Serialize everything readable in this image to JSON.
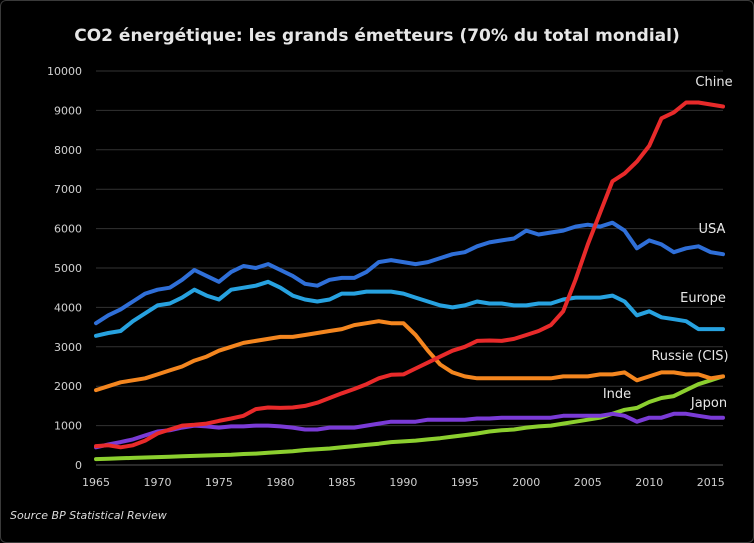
{
  "chart_data": {
    "type": "line",
    "title": "CO2 énergétique: les grands émetteurs  (70% du total mondial)",
    "source": "Source BP Statistical Review",
    "xlabel": "",
    "ylabel": "",
    "xlim": [
      1965,
      2016
    ],
    "ylim": [
      0,
      10000
    ],
    "yticks": [
      0,
      1000,
      2000,
      3000,
      4000,
      5000,
      6000,
      7000,
      8000,
      9000,
      10000
    ],
    "xticks": [
      1965,
      1970,
      1975,
      1980,
      1985,
      1990,
      1995,
      2000,
      2005,
      2010,
      2015
    ],
    "grid": true,
    "legend": "labels-on-lines",
    "x": [
      1965,
      1966,
      1967,
      1968,
      1969,
      1970,
      1971,
      1972,
      1973,
      1974,
      1975,
      1976,
      1977,
      1978,
      1979,
      1980,
      1981,
      1982,
      1983,
      1984,
      1985,
      1986,
      1987,
      1988,
      1989,
      1990,
      1991,
      1992,
      1993,
      1994,
      1995,
      1996,
      1997,
      1998,
      1999,
      2000,
      2001,
      2002,
      2003,
      2004,
      2005,
      2006,
      2007,
      2008,
      2009,
      2010,
      2011,
      2012,
      2013,
      2014,
      2015,
      2016
    ],
    "series": [
      {
        "name": "Chine",
        "color": "#e82a2a",
        "values": [
          480,
          500,
          450,
          500,
          620,
          800,
          900,
          1000,
          1020,
          1050,
          1120,
          1180,
          1250,
          1420,
          1460,
          1450,
          1460,
          1500,
          1580,
          1700,
          1820,
          1930,
          2050,
          2200,
          2290,
          2300,
          2450,
          2600,
          2750,
          2900,
          3000,
          3150,
          3160,
          3150,
          3200,
          3300,
          3400,
          3550,
          3900,
          4700,
          5600,
          6400,
          7200,
          7400,
          7700,
          8100,
          8800,
          8950,
          9200,
          9200,
          9150,
          9100
        ]
      },
      {
        "name": "USA",
        "color": "#2f6fd8",
        "values": [
          3600,
          3800,
          3950,
          4150,
          4350,
          4450,
          4500,
          4700,
          4950,
          4800,
          4650,
          4900,
          5050,
          5000,
          5100,
          4950,
          4800,
          4600,
          4550,
          4700,
          4750,
          4750,
          4900,
          5150,
          5200,
          5150,
          5100,
          5150,
          5250,
          5350,
          5400,
          5550,
          5650,
          5700,
          5750,
          5950,
          5850,
          5900,
          5950,
          6050,
          6100,
          6050,
          6150,
          5950,
          5500,
          5700,
          5600,
          5400,
          5500,
          5550,
          5400,
          5350
        ]
      },
      {
        "name": "Europe",
        "color": "#27a2e0",
        "values": [
          3280,
          3350,
          3400,
          3650,
          3850,
          4050,
          4100,
          4250,
          4450,
          4300,
          4200,
          4450,
          4500,
          4550,
          4650,
          4500,
          4300,
          4200,
          4150,
          4200,
          4350,
          4350,
          4400,
          4400,
          4400,
          4350,
          4250,
          4150,
          4050,
          4000,
          4050,
          4150,
          4100,
          4100,
          4050,
          4050,
          4100,
          4100,
          4200,
          4250,
          4250,
          4250,
          4300,
          4150,
          3800,
          3900,
          3750,
          3700,
          3650,
          3450,
          3450,
          3450
        ]
      },
      {
        "name": "Russie (CIS)",
        "color": "#f4861f",
        "values": [
          1900,
          2000,
          2100,
          2150,
          2200,
          2300,
          2400,
          2500,
          2650,
          2750,
          2900,
          3000,
          3100,
          3150,
          3200,
          3250,
          3250,
          3300,
          3350,
          3400,
          3450,
          3550,
          3600,
          3650,
          3600,
          3600,
          3300,
          2900,
          2550,
          2350,
          2250,
          2200,
          2200,
          2200,
          2200,
          2200,
          2200,
          2200,
          2250,
          2250,
          2250,
          2300,
          2300,
          2350,
          2150,
          2250,
          2350,
          2350,
          2300,
          2300,
          2200,
          2250
        ]
      },
      {
        "name": "Inde",
        "color": "#8ccf2f",
        "values": [
          150,
          160,
          170,
          180,
          190,
          200,
          210,
          220,
          230,
          240,
          250,
          260,
          280,
          290,
          310,
          330,
          350,
          380,
          400,
          420,
          450,
          480,
          510,
          540,
          580,
          600,
          620,
          650,
          680,
          720,
          760,
          800,
          850,
          880,
          900,
          950,
          980,
          1000,
          1050,
          1100,
          1150,
          1200,
          1300,
          1400,
          1450,
          1600,
          1700,
          1750,
          1900,
          2050,
          2150,
          2250
        ]
      },
      {
        "name": "Japon",
        "color": "#7a3bd6",
        "values": [
          450,
          520,
          580,
          650,
          750,
          850,
          880,
          950,
          1000,
          980,
          950,
          980,
          980,
          1000,
          1000,
          980,
          950,
          900,
          900,
          950,
          950,
          950,
          1000,
          1050,
          1100,
          1100,
          1100,
          1150,
          1150,
          1150,
          1150,
          1180,
          1180,
          1200,
          1200,
          1200,
          1200,
          1200,
          1250,
          1250,
          1250,
          1250,
          1300,
          1250,
          1100,
          1200,
          1200,
          1300,
          1300,
          1250,
          1200,
          1200
        ]
      }
    ]
  }
}
